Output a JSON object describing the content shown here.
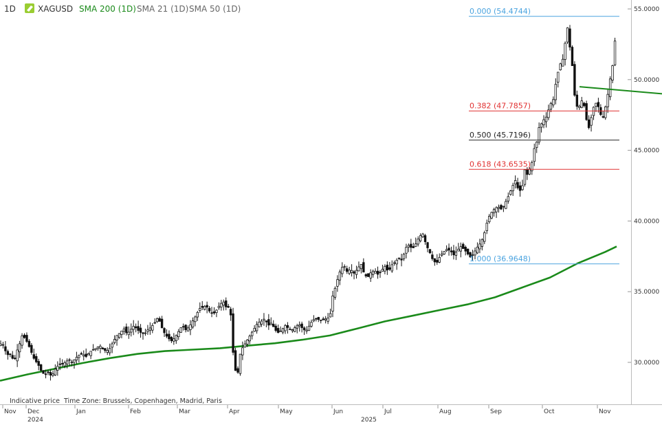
{
  "toolbar": {
    "timeframe": "1D",
    "symbol": "XAGUSD",
    "indicators": [
      {
        "label": "SMA 200 (1D)",
        "color": "#1a8a1a"
      },
      {
        "label": "SMA 21 (1D)",
        "color": "#666666"
      },
      {
        "label": "SMA 50 (1D)",
        "color": "#666666"
      }
    ],
    "symbol_icon_color": "#9acd32"
  },
  "footer": {
    "indicative": "Indicative price",
    "timezone": "Time Zone: Brussels, Copenhagen, Madrid, Paris"
  },
  "chart_data": {
    "type": "candlestick",
    "instrument": "XAGUSD",
    "timeframe": "1D",
    "ylim": [
      26.5,
      55.8
    ],
    "y_ticks": [
      "30.0000",
      "35.0000",
      "40.0000",
      "45.0000",
      "50.0000",
      "55.0000"
    ],
    "x_months": [
      "Nov",
      "Dec",
      "Jan",
      "Feb",
      "Mar",
      "Apr",
      "May",
      "Jun",
      "Jul",
      "Aug",
      "Sep",
      "Oct",
      "Nov"
    ],
    "x_years": [
      "2024",
      "2025"
    ],
    "close_series": [
      [
        0,
        31.2
      ],
      [
        3,
        31.5
      ],
      [
        6,
        31.0
      ],
      [
        9,
        30.7
      ],
      [
        12,
        30.5
      ],
      [
        15,
        30.6
      ],
      [
        18,
        30.3
      ],
      [
        21,
        30.1
      ],
      [
        24,
        30.8
      ],
      [
        27,
        31.0
      ],
      [
        30,
        31.6
      ],
      [
        33,
        32.0
      ],
      [
        36,
        31.7
      ],
      [
        40,
        31.4
      ],
      [
        45,
        30.8
      ],
      [
        50,
        30.2
      ],
      [
        55,
        29.9
      ],
      [
        60,
        29.4
      ],
      [
        65,
        29.1
      ],
      [
        70,
        29.3
      ],
      [
        75,
        29.0
      ],
      [
        80,
        29.5
      ],
      [
        85,
        29.8
      ],
      [
        90,
        29.9
      ],
      [
        95,
        30.0
      ],
      [
        100,
        30.2
      ],
      [
        105,
        30.0
      ],
      [
        110,
        30.3
      ],
      [
        115,
        30.5
      ],
      [
        120,
        30.6
      ],
      [
        125,
        30.4
      ],
      [
        130,
        30.7
      ],
      [
        135,
        30.9
      ],
      [
        140,
        31.0
      ],
      [
        145,
        31.2
      ],
      [
        150,
        30.9
      ],
      [
        155,
        30.8
      ],
      [
        160,
        31.0
      ],
      [
        165,
        31.5
      ],
      [
        170,
        31.9
      ],
      [
        175,
        32.1
      ],
      [
        180,
        32.4
      ],
      [
        185,
        32.0
      ],
      [
        190,
        32.3
      ],
      [
        195,
        32.6
      ],
      [
        200,
        32.3
      ],
      [
        205,
        32.1
      ],
      [
        210,
        32.0
      ],
      [
        215,
        32.3
      ],
      [
        220,
        32.5
      ],
      [
        225,
        32.8
      ],
      [
        230,
        33.2
      ],
      [
        235,
        32.5
      ],
      [
        240,
        32.0
      ],
      [
        245,
        31.7
      ],
      [
        250,
        31.5
      ],
      [
        255,
        31.8
      ],
      [
        260,
        32.2
      ],
      [
        265,
        32.6
      ],
      [
        270,
        32.3
      ],
      [
        275,
        32.5
      ],
      [
        280,
        32.9
      ],
      [
        285,
        33.3
      ],
      [
        290,
        33.8
      ],
      [
        295,
        33.9
      ],
      [
        300,
        34.0
      ],
      [
        305,
        33.6
      ],
      [
        310,
        33.4
      ],
      [
        315,
        33.7
      ],
      [
        320,
        34.1
      ],
      [
        325,
        34.3
      ],
      [
        330,
        33.8
      ],
      [
        335,
        34.0
      ],
      [
        338,
        31.0
      ],
      [
        341,
        30.2
      ],
      [
        344,
        28.7
      ],
      [
        347,
        29.6
      ],
      [
        350,
        30.8
      ],
      [
        355,
        31.2
      ],
      [
        360,
        31.6
      ],
      [
        365,
        32.0
      ],
      [
        370,
        32.4
      ],
      [
        375,
        32.8
      ],
      [
        380,
        32.9
      ],
      [
        385,
        33.1
      ],
      [
        390,
        32.6
      ],
      [
        395,
        32.8
      ],
      [
        400,
        32.3
      ],
      [
        405,
        32.1
      ],
      [
        410,
        32.3
      ],
      [
        415,
        32.6
      ],
      [
        420,
        32.4
      ],
      [
        425,
        32.3
      ],
      [
        430,
        32.5
      ],
      [
        435,
        32.7
      ],
      [
        440,
        32.4
      ],
      [
        445,
        32.2
      ],
      [
        450,
        32.6
      ],
      [
        455,
        33.0
      ],
      [
        460,
        33.1
      ],
      [
        465,
        33.0
      ],
      [
        470,
        33.0
      ],
      [
        475,
        33.1
      ],
      [
        480,
        33.2
      ],
      [
        483,
        34.6
      ],
      [
        486,
        34.9
      ],
      [
        489,
        35.6
      ],
      [
        492,
        36.0
      ],
      [
        495,
        36.5
      ],
      [
        500,
        36.9
      ],
      [
        505,
        36.4
      ],
      [
        510,
        36.6
      ],
      [
        515,
        36.3
      ],
      [
        520,
        36.6
      ],
      [
        525,
        37.0
      ],
      [
        530,
        36.2
      ],
      [
        535,
        36.0
      ],
      [
        540,
        36.4
      ],
      [
        545,
        36.5
      ],
      [
        550,
        36.2
      ],
      [
        555,
        36.5
      ],
      [
        560,
        36.8
      ],
      [
        565,
        36.4
      ],
      [
        570,
        36.9
      ],
      [
        575,
        37.1
      ],
      [
        580,
        37.4
      ],
      [
        585,
        37.2
      ],
      [
        590,
        38.1
      ],
      [
        595,
        38.3
      ],
      [
        600,
        38.0
      ],
      [
        605,
        38.4
      ],
      [
        610,
        38.9
      ],
      [
        615,
        39.1
      ],
      [
        620,
        38.3
      ],
      [
        625,
        37.8
      ],
      [
        630,
        37.2
      ],
      [
        635,
        37.0
      ],
      [
        640,
        37.5
      ],
      [
        645,
        37.8
      ],
      [
        650,
        38.0
      ],
      [
        655,
        37.9
      ],
      [
        660,
        37.6
      ],
      [
        665,
        37.9
      ],
      [
        670,
        38.2
      ],
      [
        675,
        38.0
      ],
      [
        680,
        37.7
      ],
      [
        685,
        37.4
      ],
      [
        690,
        37.8
      ],
      [
        695,
        38.2
      ],
      [
        700,
        38.5
      ],
      [
        705,
        39.2
      ],
      [
        710,
        40.2
      ],
      [
        715,
        40.6
      ],
      [
        720,
        40.9
      ],
      [
        725,
        41.0
      ],
      [
        730,
        40.8
      ],
      [
        735,
        41.3
      ],
      [
        740,
        41.8
      ],
      [
        745,
        42.4
      ],
      [
        750,
        42.9
      ],
      [
        755,
        42.0
      ],
      [
        760,
        42.5
      ],
      [
        763,
        43.7
      ],
      [
        766,
        43.2
      ],
      [
        769,
        43.5
      ],
      [
        772,
        43.9
      ],
      [
        775,
        44.3
      ],
      [
        778,
        45.4
      ],
      [
        781,
        45.6
      ],
      [
        784,
        46.6
      ],
      [
        787,
        46.8
      ],
      [
        790,
        47.2
      ],
      [
        793,
        47.1
      ],
      [
        796,
        47.6
      ],
      [
        799,
        48.0
      ],
      [
        802,
        48.4
      ],
      [
        805,
        48.6
      ],
      [
        808,
        49.6
      ],
      [
        811,
        50.3
      ],
      [
        814,
        51.2
      ],
      [
        817,
        51.0
      ],
      [
        820,
        51.8
      ],
      [
        823,
        52.9
      ],
      [
        826,
        53.8
      ],
      [
        829,
        52.3
      ],
      [
        832,
        51.3
      ],
      [
        835,
        49.2
      ],
      [
        838,
        48.2
      ],
      [
        841,
        48.0
      ],
      [
        844,
        48.2
      ],
      [
        847,
        48.6
      ],
      [
        850,
        48.1
      ],
      [
        853,
        47.2
      ],
      [
        856,
        46.5
      ],
      [
        859,
        47.0
      ],
      [
        862,
        47.9
      ],
      [
        865,
        48.2
      ],
      [
        868,
        48.4
      ],
      [
        871,
        48.0
      ],
      [
        874,
        47.5
      ],
      [
        877,
        47.3
      ],
      [
        880,
        47.9
      ],
      [
        883,
        48.6
      ],
      [
        886,
        49.5
      ],
      [
        889,
        50.5
      ],
      [
        892,
        51.2
      ],
      [
        895,
        53.0
      ],
      [
        898,
        53.8
      ]
    ],
    "sma200": [
      [
        0,
        28.7
      ],
      [
        40,
        29.15
      ],
      [
        80,
        29.55
      ],
      [
        120,
        29.95
      ],
      [
        160,
        30.3
      ],
      [
        200,
        30.6
      ],
      [
        240,
        30.8
      ],
      [
        280,
        30.9
      ],
      [
        320,
        31.0
      ],
      [
        360,
        31.18
      ],
      [
        400,
        31.35
      ],
      [
        440,
        31.6
      ],
      [
        480,
        31.9
      ],
      [
        520,
        32.4
      ],
      [
        560,
        32.9
      ],
      [
        600,
        33.3
      ],
      [
        640,
        33.7
      ],
      [
        680,
        34.1
      ],
      [
        720,
        34.6
      ],
      [
        760,
        35.3
      ],
      [
        800,
        36.0
      ],
      [
        840,
        37.0
      ],
      [
        880,
        37.8
      ],
      [
        897,
        38.2
      ]
    ],
    "fibonacci": [
      {
        "label": "0.000 (54.4744)",
        "level": 54.4744,
        "color": "#4aa3df"
      },
      {
        "label": "0.382 (47.7857)",
        "level": 47.7857,
        "color": "#e03030"
      },
      {
        "label": "0.500 (45.7196)",
        "level": 45.7196,
        "color": "#222222"
      },
      {
        "label": "0.618 (43.6535)",
        "level": 43.6535,
        "color": "#e03030"
      },
      {
        "label": "1.000 (36.9648)",
        "level": 36.9648,
        "color": "#4aa3df"
      }
    ],
    "trendline": {
      "color": "#1a8a1a",
      "from": [
        843,
        49.5
      ],
      "to": [
        963,
        49.0
      ]
    },
    "grid": false,
    "legend_placement": "top-left"
  }
}
